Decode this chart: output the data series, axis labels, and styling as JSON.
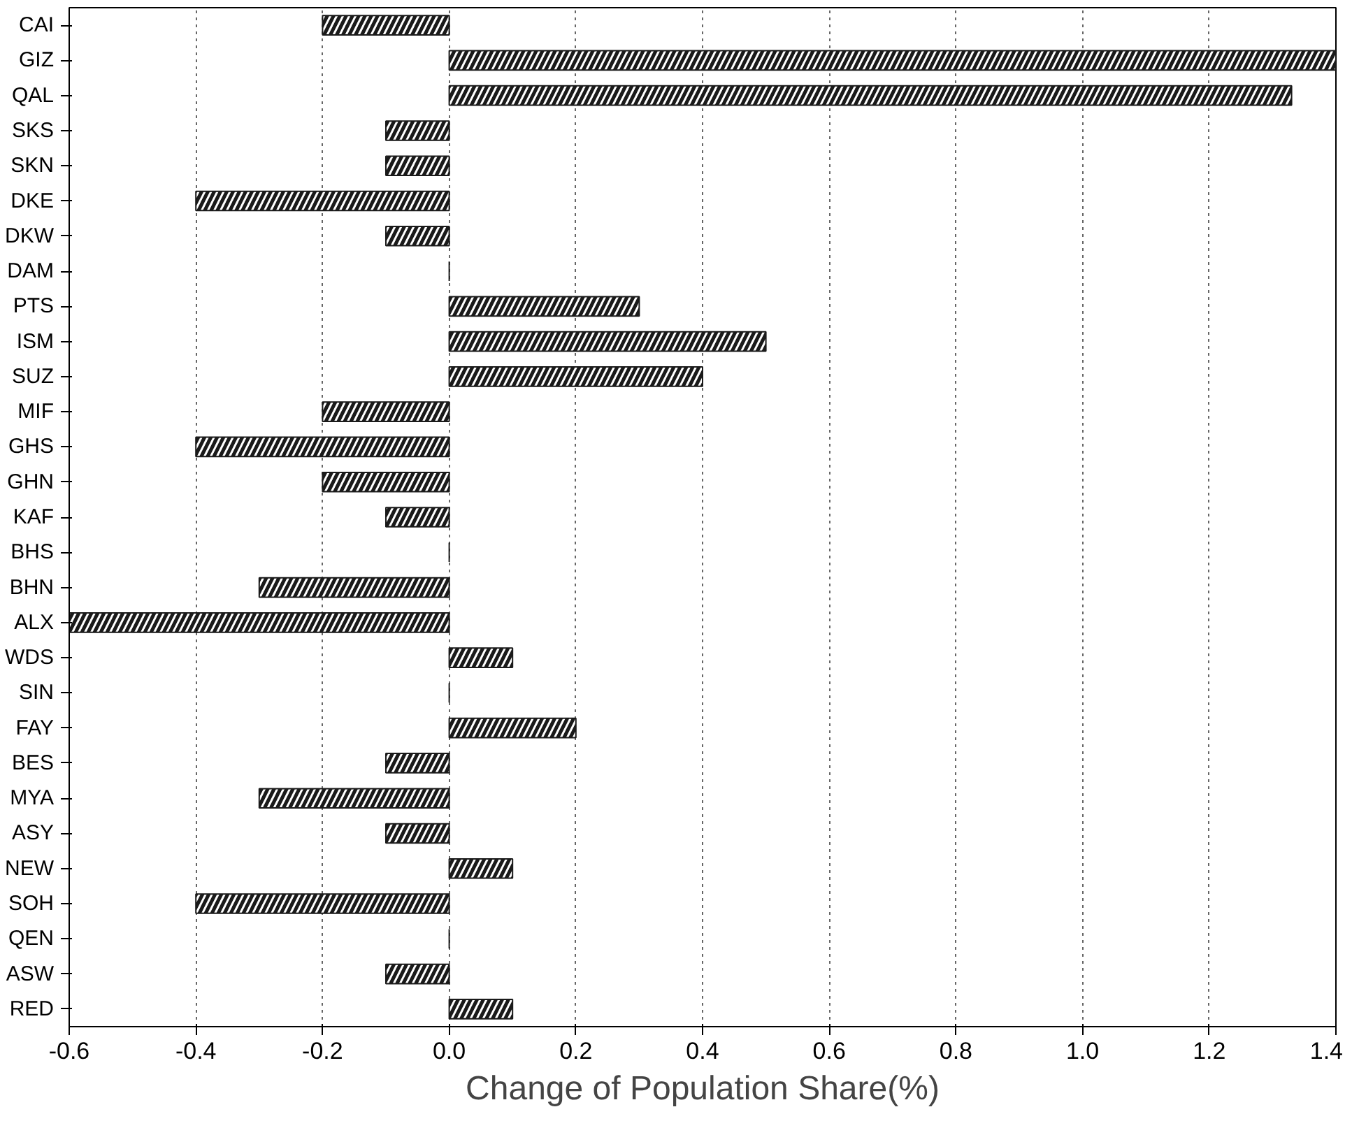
{
  "chart_data": {
    "type": "bar",
    "orientation": "horizontal",
    "xlabel": "Change of Population Share(%)",
    "categories": [
      "CAI",
      "GIZ",
      "QAL",
      "SKS",
      "SKN",
      "DKE",
      "DKW",
      "DAM",
      "PTS",
      "ISM",
      "SUZ",
      "MIF",
      "GHS",
      "GHN",
      "KAF",
      "BHS",
      "BHN",
      "ALX",
      "WDS",
      "SIN",
      "FAY",
      "BES",
      "MYA",
      "ASY",
      "NEW",
      "SOH",
      "QEN",
      "ASW",
      "RED"
    ],
    "values": [
      -0.2,
      1.4,
      1.33,
      -0.1,
      -0.1,
      -0.4,
      -0.1,
      0,
      0.3,
      0.5,
      0.4,
      -0.2,
      -0.4,
      -0.2,
      -0.1,
      0,
      -0.3,
      -0.6,
      0.1,
      0,
      0.2,
      -0.1,
      -0.3,
      -0.1,
      0.1,
      -0.4,
      0,
      -0.1,
      0.1
    ],
    "color": "#1a1a1a",
    "xlim": [
      -0.6,
      1.4
    ],
    "xticks": [
      -0.6,
      -0.4,
      -0.2,
      {
        "value": 0,
        "label": "0.0"
      },
      0.2,
      0.4,
      0.6,
      0.8,
      {
        "value": 1,
        "label": "1.0"
      },
      1.2,
      1.4
    ],
    "grid": "x"
  }
}
